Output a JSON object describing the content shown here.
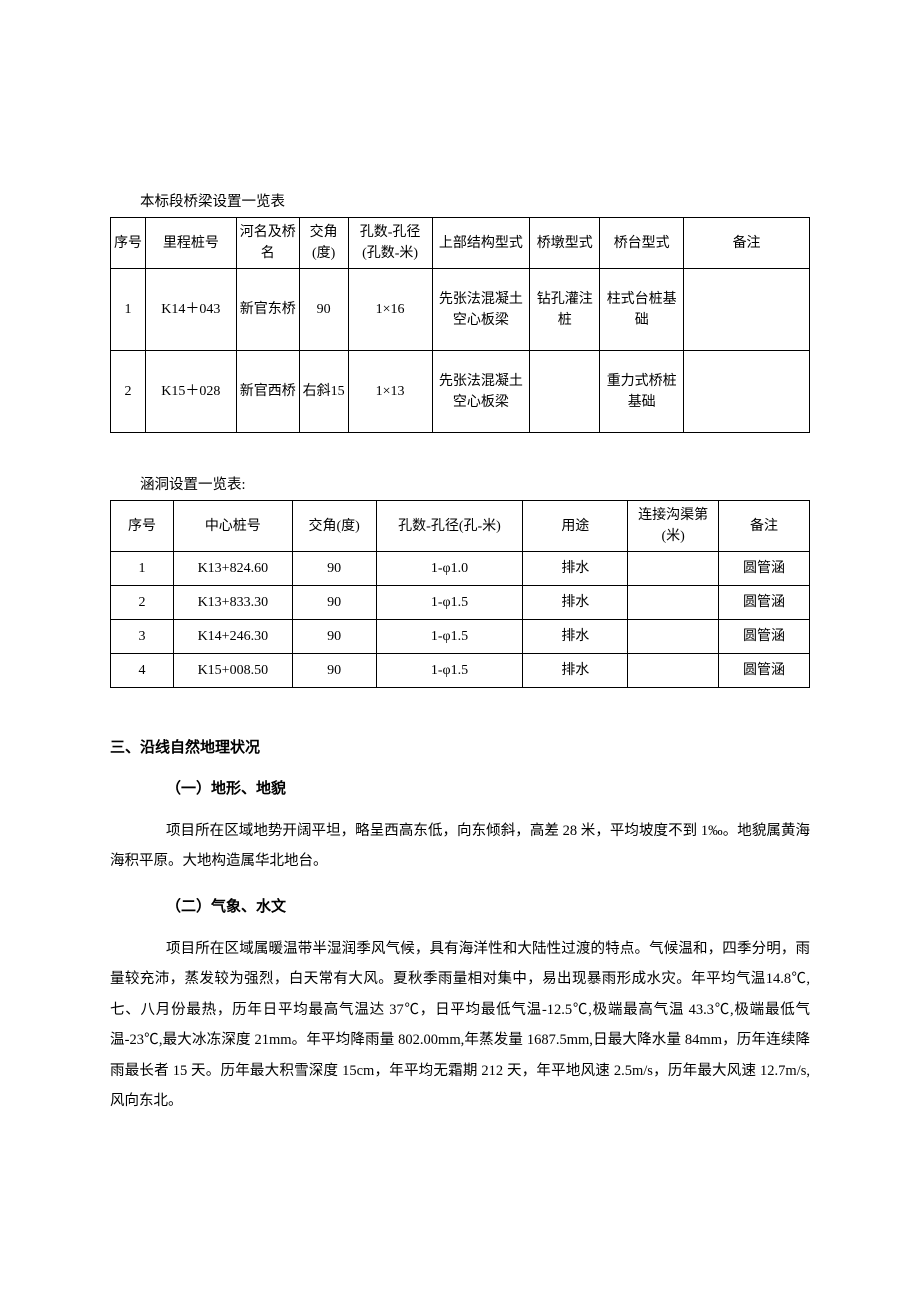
{
  "table1": {
    "caption": "本标段桥梁设置一览表",
    "columns": {
      "c1": "序号",
      "c2": "里程桩号",
      "c3": "河名及桥名",
      "c4": "交角(度)",
      "c5": "孔数-孔径(孔数-米)",
      "c6": "上部结构型式",
      "c7": "桥墩型式",
      "c8": "桥台型式",
      "c9": "备注"
    },
    "col_widths": [
      "5%",
      "13%",
      "9%",
      "7%",
      "12%",
      "14%",
      "10%",
      "12%",
      "18%"
    ],
    "rows": [
      {
        "c1": "1",
        "c2": "K14＋043",
        "c3": "新官东桥",
        "c4": "90",
        "c5": "1×16",
        "c6": "先张法混凝土空心板梁",
        "c7": "钻孔灌注桩",
        "c8": "柱式台桩基础",
        "c9": ""
      },
      {
        "c1": "2",
        "c2": "K15＋028",
        "c3": "新官西桥",
        "c4": "右斜15",
        "c5": "1×13",
        "c6": "先张法混凝土空心板梁",
        "c7": "",
        "c8": "重力式桥桩基础",
        "c9": ""
      }
    ]
  },
  "table2": {
    "caption": "涵洞设置一览表:",
    "columns": {
      "c1": "序号",
      "c2": "中心桩号",
      "c3": "交角(度)",
      "c4": "孔数-孔径(孔-米)",
      "c5": "用途",
      "c6": "连接沟渠第(米)",
      "c7": "备注"
    },
    "col_widths": [
      "9%",
      "17%",
      "12%",
      "21%",
      "15%",
      "13%",
      "13%"
    ],
    "rows": [
      {
        "c1": "1",
        "c2": "K13+824.60",
        "c3": "90",
        "c4": "1-φ1.0",
        "c5": "排水",
        "c6": "",
        "c7": "圆管涵"
      },
      {
        "c1": "2",
        "c2": "K13+833.30",
        "c3": "90",
        "c4": "1-φ1.5",
        "c5": "排水",
        "c6": "",
        "c7": "圆管涵"
      },
      {
        "c1": "3",
        "c2": "K14+246.30",
        "c3": "90",
        "c4": "1-φ1.5",
        "c5": "排水",
        "c6": "",
        "c7": "圆管涵"
      },
      {
        "c1": "4",
        "c2": "K15+008.50",
        "c3": "90",
        "c4": "1-φ1.5",
        "c5": "排水",
        "c6": "",
        "c7": "圆管涵"
      }
    ]
  },
  "section": {
    "h3": "三、沿线自然地理状况",
    "s1_h4": "（一）地形、地貌",
    "s1_p1": "项目所在区域地势开阔平坦，略呈西高东低，向东倾斜，高差 28 米，平均坡度不到 1‰。地貌属黄海海积平原。大地构造属华北地台。",
    "s2_h4": "（二）气象、水文",
    "s2_p1": "项目所在区域属暖温带半湿润季风气候，具有海洋性和大陆性过渡的特点。气候温和，四季分明，雨量较充沛，蒸发较为强烈，白天常有大风。夏秋季雨量相对集中，易出现暴雨形成水灾。年平均气温14.8℃,七、八月份最热，历年日平均最高气温达 37℃，日平均最低气温-12.5℃,极端最高气温 43.3℃,极端最低气温-23℃,最大冰冻深度 21mm。年平均降雨量 802.00mm,年蒸发量 1687.5mm,日最大降水量 84mm，历年连续降雨最长者 15 天。历年最大积雪深度 15cm，年平均无霜期 212 天，年平地风速 2.5m/s，历年最大风速 12.7m/s,风向东北。"
  }
}
